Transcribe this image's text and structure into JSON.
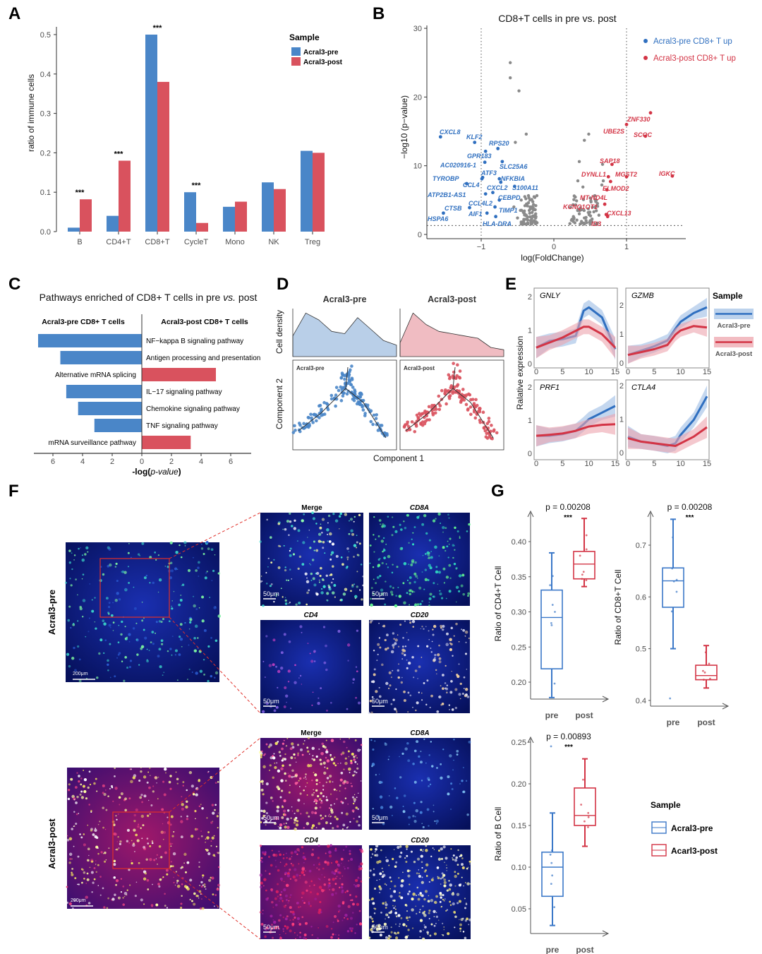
{
  "panel_labels": {
    "A": "A",
    "B": "B",
    "C": "C",
    "D": "D",
    "E": "E",
    "F": "F",
    "G": "G"
  },
  "colors": {
    "pre": "#4a86c8",
    "post": "#d9525e",
    "gray": "#8a8a8a",
    "pre_dark": "#2f6fbf",
    "post_dark": "#d33445"
  },
  "chart_data": [
    {
      "id": "A",
      "type": "bar",
      "ylabel": "ratio of immune cells",
      "categories": [
        "B",
        "CD4+T",
        "CD8+T",
        "CycleT",
        "Mono",
        "NK",
        "Treg"
      ],
      "series": [
        {
          "name": "Acral3-pre",
          "values": [
            0.01,
            0.04,
            0.5,
            0.1,
            0.063,
            0.125,
            0.205
          ]
        },
        {
          "name": "Acral3-post",
          "values": [
            0.082,
            0.18,
            0.38,
            0.022,
            0.076,
            0.108,
            0.2
          ]
        }
      ],
      "significance": [
        "***",
        "***",
        "***",
        "***",
        "",
        "",
        ""
      ],
      "ylim": [
        0,
        0.5
      ],
      "yticks": [
        0,
        0.1,
        0.2,
        0.3,
        0.4,
        0.5
      ],
      "ytick_labels": [
        "0.0",
        "0.1",
        "0.2",
        "0.3",
        "0.4",
        "0.5"
      ],
      "legend": {
        "title": "Sample",
        "placement": "top-right"
      }
    },
    {
      "id": "B",
      "type": "scatter",
      "title": "CD8+T cells in pre vs. post",
      "xlabel": "log(FoldChange)",
      "ylabel": "−log10 (p−value)",
      "xticks": [
        -1,
        0,
        1
      ],
      "xtick_labels": [
        "−1",
        "0",
        "1"
      ],
      "yticks": [
        0,
        10,
        20,
        30
      ],
      "ytick_labels": [
        "0",
        "10",
        "20",
        "30"
      ],
      "thresholds": {
        "logfc": [
          -1,
          1
        ],
        "neglog10p": 1.3
      },
      "legend": [
        {
          "label": "Acral3-pre CD8+ T up",
          "group": "pre"
        },
        {
          "label": "Acral3-post CD8+ T up",
          "group": "post"
        }
      ],
      "labeled_points": [
        {
          "gene": "CXCL8",
          "x": -1.56,
          "y": 14.2,
          "group": "pre"
        },
        {
          "gene": "KLF2",
          "x": -1.09,
          "y": 13.4,
          "group": "pre"
        },
        {
          "gene": "RPS20",
          "x": -0.77,
          "y": 12.5,
          "group": "pre"
        },
        {
          "gene": "GPR183",
          "x": -0.94,
          "y": 12.1,
          "group": "pre"
        },
        {
          "gene": "AC020916-1",
          "x": -0.95,
          "y": 10.5,
          "group": "pre"
        },
        {
          "gene": "SLC25A6",
          "x": -0.71,
          "y": 10.6,
          "group": "pre"
        },
        {
          "gene": "ATF3",
          "x": -0.98,
          "y": 8.3,
          "group": "pre"
        },
        {
          "gene": "TYROBP",
          "x": -0.99,
          "y": 8.1,
          "group": "pre"
        },
        {
          "gene": "NFKBIA",
          "x": -0.75,
          "y": 8.1,
          "group": "pre"
        },
        {
          "gene": "CCL4",
          "x": -1.2,
          "y": 7.4,
          "group": "pre"
        },
        {
          "gene": "CXCL2",
          "x": -0.73,
          "y": 7.6,
          "group": "pre"
        },
        {
          "gene": "S100A11",
          "x": -0.54,
          "y": 7.0,
          "group": "pre"
        },
        {
          "gene": "ATP2B1-AS1",
          "x": -0.94,
          "y": 5.9,
          "group": "pre"
        },
        {
          "gene": "CCL4L2",
          "x": -0.84,
          "y": 6.1,
          "group": "pre"
        },
        {
          "gene": "CEBPD",
          "x": -0.75,
          "y": 5.0,
          "group": "pre"
        },
        {
          "gene": "CTSB",
          "x": -1.16,
          "y": 3.9,
          "group": "pre"
        },
        {
          "gene": "TIMP1",
          "x": -0.81,
          "y": 4.0,
          "group": "pre"
        },
        {
          "gene": "AIF1",
          "x": -0.92,
          "y": 3.1,
          "group": "pre"
        },
        {
          "gene": "HSPA6",
          "x": -1.52,
          "y": 3.1,
          "group": "pre"
        },
        {
          "gene": "HLA-DRA",
          "x": -0.8,
          "y": 2.6,
          "group": "pre"
        },
        {
          "gene": "ZNF330",
          "x": 1.33,
          "y": 17.7,
          "group": "post"
        },
        {
          "gene": "UBE2S",
          "x": 1.0,
          "y": 16.0,
          "group": "post"
        },
        {
          "gene": "SCOC",
          "x": 1.26,
          "y": 14.3,
          "group": "post"
        },
        {
          "gene": "SAP18",
          "x": 0.8,
          "y": 10.2,
          "group": "post"
        },
        {
          "gene": "DYNLL1",
          "x": 0.75,
          "y": 8.4,
          "group": "post"
        },
        {
          "gene": "MGST2",
          "x": 1.0,
          "y": 8.4,
          "group": "post"
        },
        {
          "gene": "IGKC",
          "x": 1.63,
          "y": 8.5,
          "group": "post"
        },
        {
          "gene": "ELMOD2",
          "x": 0.78,
          "y": 7.7,
          "group": "post"
        },
        {
          "gene": "MT-ND4L",
          "x": 0.73,
          "y": 6.5,
          "group": "post"
        },
        {
          "gene": "KCNQ1OT1",
          "x": 0.7,
          "y": 4.4,
          "group": "post"
        },
        {
          "gene": "CXCL13",
          "x": 0.72,
          "y": 2.9,
          "group": "post"
        },
        {
          "gene": "ID3",
          "x": 0.74,
          "y": 2.6,
          "group": "post"
        }
      ],
      "gray_points": [
        [
          -0.6,
          25
        ],
        [
          -0.6,
          22.8
        ],
        [
          -0.48,
          20.9
        ],
        [
          -0.38,
          14.6
        ],
        [
          -0.53,
          13.4
        ],
        [
          0.48,
          14.6
        ],
        [
          0.42,
          13.7
        ],
        [
          0.35,
          10.6
        ],
        [
          0.67,
          10.2
        ],
        [
          0.33,
          7.8
        ],
        [
          0.4,
          6.9
        ],
        [
          0.68,
          7.8
        ],
        [
          0.66,
          7.2
        ],
        [
          -0.4,
          5.5
        ],
        [
          -0.35,
          4.6
        ],
        [
          -0.3,
          3.8
        ],
        [
          -0.42,
          3.2
        ],
        [
          -0.28,
          2.6
        ],
        [
          -0.36,
          2.1
        ],
        [
          -0.45,
          1.8
        ],
        [
          -0.3,
          1.6
        ],
        [
          -0.5,
          2.4
        ],
        [
          -0.25,
          3.0
        ],
        [
          -0.33,
          5.0
        ],
        [
          -0.55,
          4.0
        ],
        [
          -0.38,
          2.8
        ],
        [
          -0.27,
          2.0
        ],
        [
          -0.46,
          3.5
        ],
        [
          0.28,
          5.6
        ],
        [
          0.3,
          4.3
        ],
        [
          0.35,
          3.0
        ],
        [
          0.42,
          2.4
        ],
        [
          0.5,
          2.0
        ],
        [
          0.55,
          3.3
        ],
        [
          0.6,
          4.5
        ],
        [
          0.45,
          1.7
        ],
        [
          0.38,
          1.9
        ],
        [
          0.62,
          2.8
        ],
        [
          0.27,
          2.2
        ],
        [
          0.5,
          5.3
        ],
        [
          0.57,
          4.0
        ],
        [
          0.33,
          3.6
        ]
      ]
    },
    {
      "id": "C",
      "type": "bar",
      "title": "Pathways enriched of CD8+ T cells in pre vs. post",
      "title_parts": [
        "Pathways enriched of CD8+ T cells in pre ",
        "vs.",
        " post"
      ],
      "left_header": "Acral3-pre CD8+ T cells",
      "right_header": "Acral3-post CD8+ T cells",
      "xlabel_parts": [
        "-log(",
        "p-value",
        ")"
      ],
      "xticks": [
        6,
        4,
        2,
        0,
        2,
        4,
        6
      ],
      "pathways": [
        {
          "name": "NF−kappa B signaling pathway",
          "group": "pre",
          "value": 7.0
        },
        {
          "name": "Antigen processing and presentation",
          "group": "pre",
          "value": 5.5
        },
        {
          "name": "Alternative mRNA splicing",
          "group": "post",
          "value": 5.0
        },
        {
          "name": "IL−17 signaling pathway",
          "group": "pre",
          "value": 5.1
        },
        {
          "name": "Chemokine signaling pathway",
          "group": "pre",
          "value": 4.3
        },
        {
          "name": "TNF signaling pathway",
          "group": "pre",
          "value": 3.2
        },
        {
          "name": "mRNA surveillance pathway",
          "group": "post",
          "value": 3.3
        }
      ]
    },
    {
      "id": "D",
      "type": "area",
      "panels": [
        "Acral3-pre",
        "Acral3-post"
      ],
      "ylabel_top": "Cell density",
      "ylabel_bottom": "Component 2",
      "xlabel": "Component 1",
      "density": {
        "Acral3-pre": [
          0.45,
          0.95,
          0.8,
          0.55,
          0.5,
          0.85,
          0.6,
          0.35,
          0.25
        ],
        "Acral3-post": [
          0.3,
          0.95,
          0.7,
          0.55,
          0.5,
          0.45,
          0.4,
          0.2,
          0.15
        ]
      }
    },
    {
      "id": "E",
      "type": "line",
      "ylabel": "Ralative expression",
      "x": [
        0,
        2.5,
        5,
        7.5,
        9,
        10,
        12.5,
        15
      ],
      "xticks": [
        0,
        5,
        10,
        15
      ],
      "yticks": [
        0,
        1,
        2
      ],
      "legend": {
        "title": "Sample",
        "items": [
          "Acral3-pre",
          "Acral3-post"
        ]
      },
      "genes": [
        {
          "name": "GNLY",
          "pre": [
            0.5,
            0.7,
            0.75,
            0.85,
            1.6,
            1.7,
            1.4,
            0.45
          ],
          "post": [
            0.5,
            0.65,
            0.8,
            1.0,
            1.12,
            1.12,
            0.9,
            0.5
          ]
        },
        {
          "name": "GZMB",
          "pre": [
            0.3,
            0.45,
            0.6,
            0.8,
            1.2,
            1.45,
            1.75,
            1.95
          ],
          "post": [
            0.3,
            0.4,
            0.5,
            0.65,
            1.0,
            1.15,
            1.3,
            1.25
          ]
        },
        {
          "name": "PRF1",
          "pre": [
            0.55,
            0.55,
            0.6,
            0.7,
            0.9,
            1.05,
            1.25,
            1.45
          ],
          "post": [
            0.55,
            0.58,
            0.62,
            0.7,
            0.78,
            0.83,
            0.88,
            0.9
          ]
        },
        {
          "name": "CTLA4",
          "pre": [
            0.5,
            0.35,
            0.3,
            0.22,
            0.3,
            0.55,
            1.0,
            1.7
          ],
          "post": [
            0.45,
            0.35,
            0.3,
            0.25,
            0.22,
            0.3,
            0.5,
            0.78
          ]
        }
      ]
    },
    {
      "id": "G",
      "type": "box",
      "x_labels": [
        "pre",
        "post"
      ],
      "legend": {
        "title": "Sample",
        "items": [
          "Acral3-pre",
          "Acarl3-post"
        ]
      },
      "plots": [
        {
          "ylabel": "Ratio of CD4+T Cell",
          "p": "p = 0.00208",
          "sig": "***",
          "yticks": [
            0.2,
            0.25,
            0.3,
            0.35,
            0.4
          ],
          "ytick_labels": [
            "0.20",
            "0.25",
            "0.30",
            "0.35",
            "0.40"
          ],
          "pre": {
            "min": 0.178,
            "q1": 0.219,
            "median": 0.292,
            "q3": 0.331,
            "max": 0.384,
            "points": [
              0.198,
              0.281,
              0.284,
              0.3,
              0.31,
              0.338,
              0.351
            ]
          },
          "post": {
            "min": 0.336,
            "q1": 0.347,
            "median": 0.368,
            "q3": 0.386,
            "max": 0.433,
            "points": [
              0.345,
              0.347,
              0.353,
              0.357,
              0.38,
              0.389,
              0.409
            ]
          }
        },
        {
          "ylabel": "Ratio of CD8+T Cell",
          "p": "p = 0.00208",
          "sig": "***",
          "yticks": [
            0.4,
            0.5,
            0.6,
            0.7
          ],
          "ytick_labels": [
            "0.4",
            "0.5",
            "0.6",
            "0.7"
          ],
          "pre": {
            "min": 0.5,
            "q1": 0.58,
            "median": 0.631,
            "q3": 0.656,
            "max": 0.75,
            "points": [
              0.404,
              0.572,
              0.61,
              0.63,
              0.633,
              0.655,
              0.715
            ]
          },
          "post": {
            "min": 0.424,
            "q1": 0.44,
            "median": 0.448,
            "q3": 0.468,
            "max": 0.506,
            "points": [
              0.44,
              0.442,
              0.454,
              0.457,
              0.471,
              0.493
            ]
          }
        },
        {
          "ylabel": "Ratio of B Cell",
          "p": "p = 0.00893",
          "sig": "***",
          "yticks": [
            0.05,
            0.1,
            0.15,
            0.2,
            0.25
          ],
          "ytick_labels": [
            "0.05",
            "0.10",
            "0.15",
            "0.20",
            "0.25"
          ],
          "pre": {
            "min": 0.03,
            "q1": 0.065,
            "median": 0.1,
            "q3": 0.118,
            "max": 0.165,
            "points": [
              0.052,
              0.08,
              0.09,
              0.105,
              0.115,
              0.12,
              0.245
            ]
          },
          "post": {
            "min": 0.125,
            "q1": 0.15,
            "median": 0.162,
            "q3": 0.195,
            "max": 0.23,
            "points": [
              0.148,
              0.155,
              0.16,
              0.165,
              0.175,
              0.205
            ]
          }
        }
      ]
    }
  ],
  "panel_f": {
    "rows": [
      "Acral3-pre",
      "Acral3-post"
    ],
    "channels": [
      "Merge",
      "CD8A",
      "CD4",
      "CD20"
    ],
    "scale_small": "50μm",
    "scale_large": "200μm"
  }
}
